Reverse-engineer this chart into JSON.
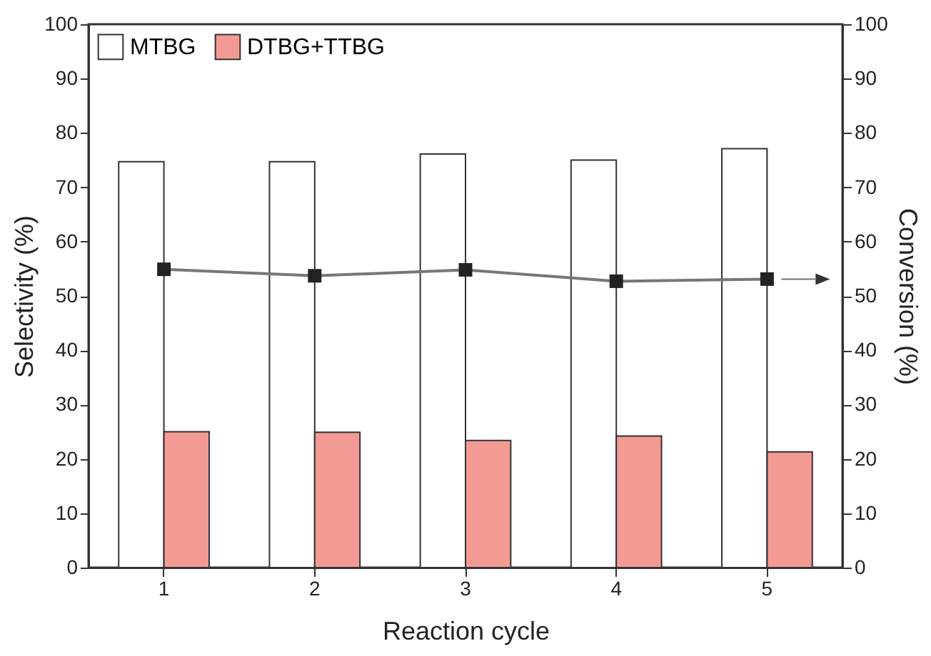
{
  "chart_data": {
    "type": "bar",
    "xlabel": "Reaction cycle",
    "ylabel": "Selectivity (%)",
    "y2label": "Conversion (%)",
    "categories": [
      "1",
      "2",
      "3",
      "4",
      "5"
    ],
    "series": [
      {
        "name": "MTBG",
        "color": "#ffffff",
        "values": [
          74.7,
          74.7,
          76.1,
          75.0,
          77.1
        ]
      },
      {
        "name": "DTBG+TTBG",
        "color": "#f49a94",
        "values": [
          25.0,
          24.9,
          23.4,
          24.2,
          21.3
        ]
      },
      {
        "type": "line",
        "axis": "y2",
        "color": "#222222",
        "marker": "square",
        "values": [
          54.9,
          53.7,
          54.8,
          52.7,
          53.1
        ]
      }
    ],
    "ylim": [
      0,
      100
    ],
    "yticks": [
      0,
      10,
      20,
      30,
      40,
      50,
      60,
      70,
      80,
      90,
      100
    ],
    "y2lim": [
      0,
      100
    ],
    "y2ticks": [
      0,
      10,
      20,
      30,
      40,
      50,
      60,
      70,
      80,
      90,
      100
    ],
    "grid": false,
    "legend": "top left"
  }
}
